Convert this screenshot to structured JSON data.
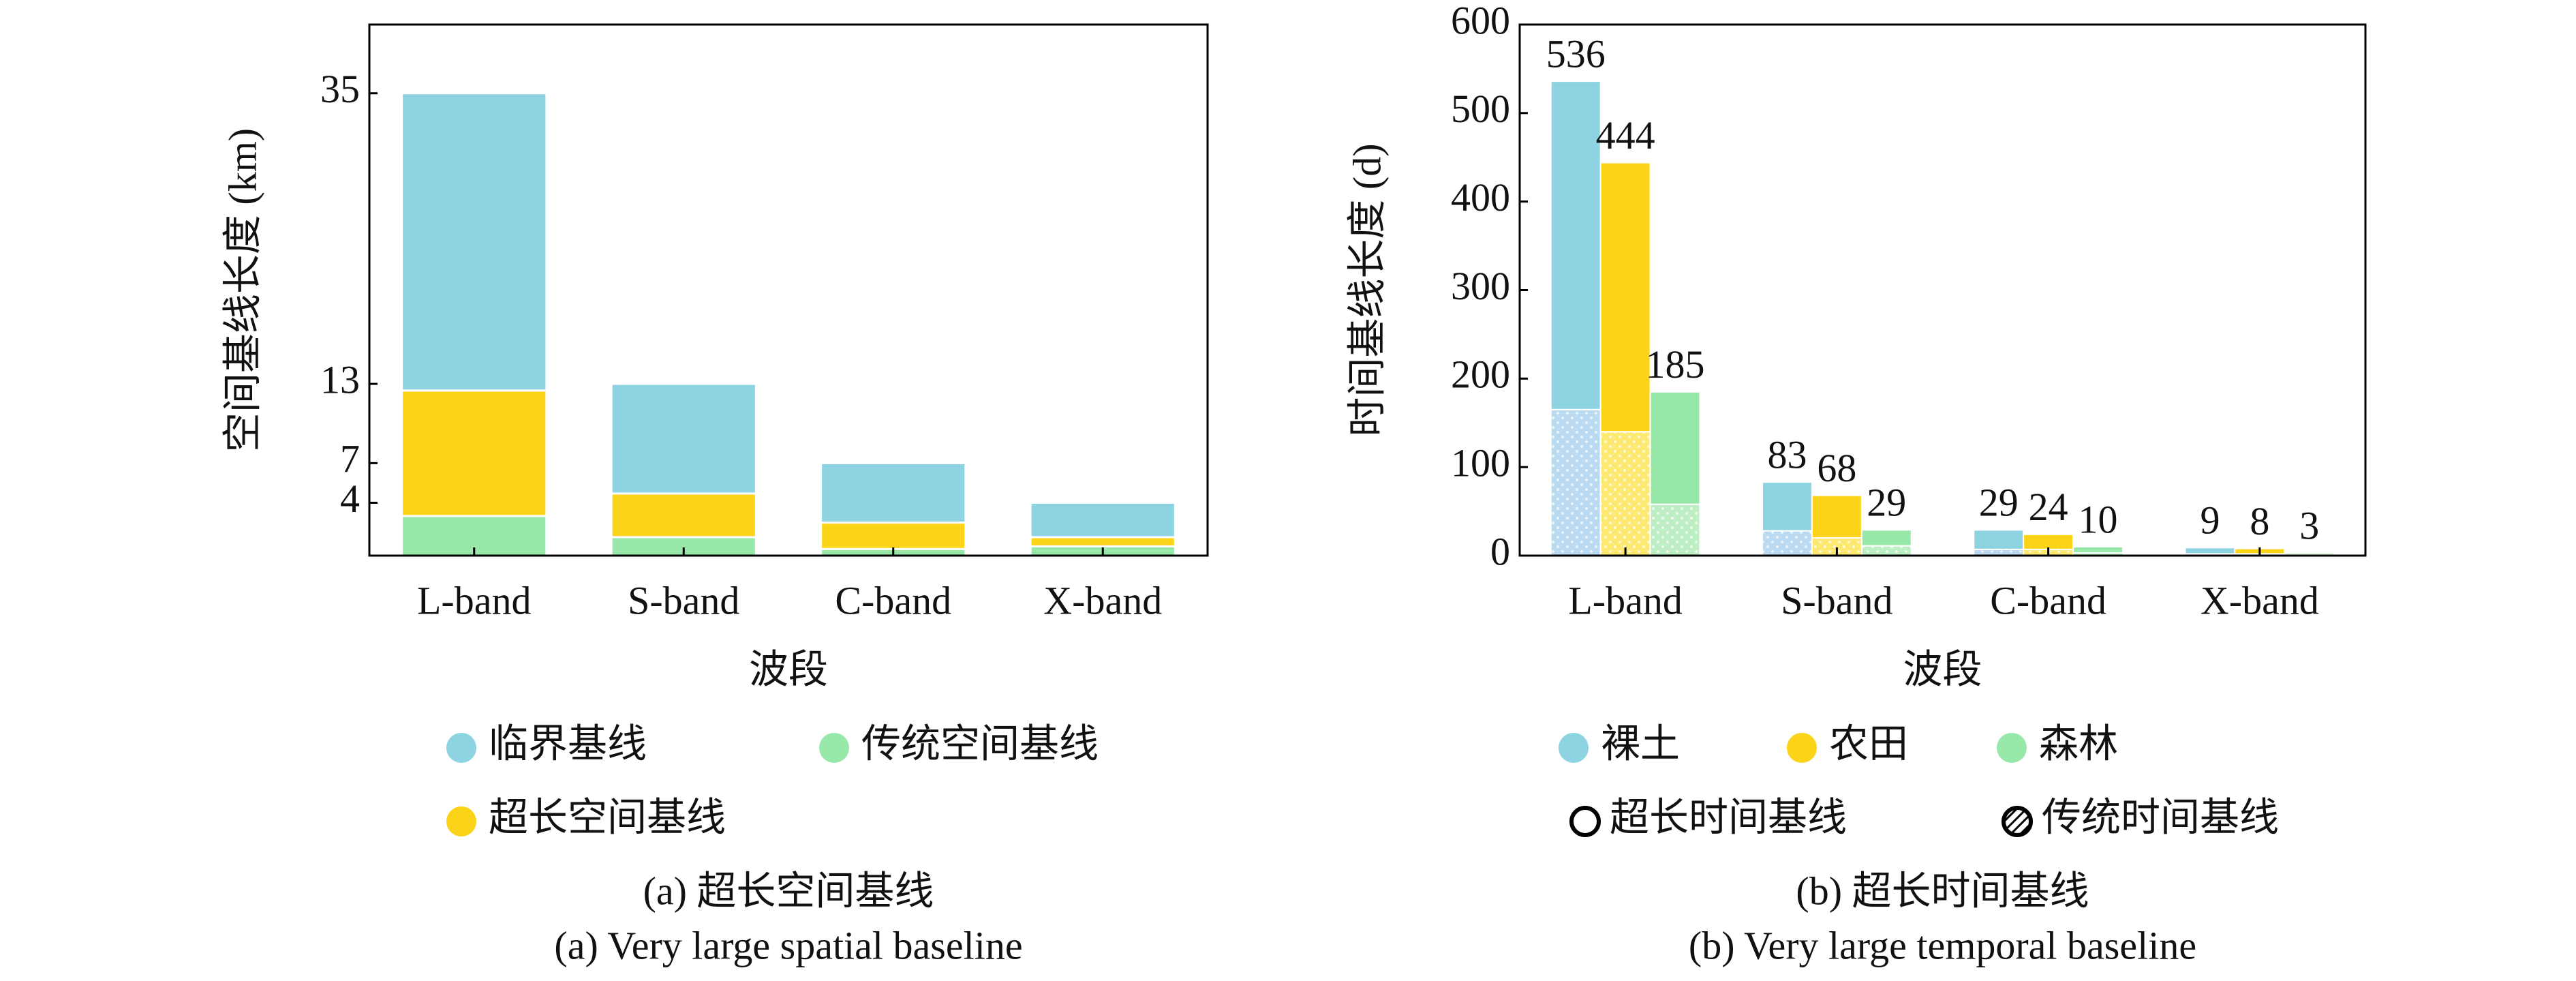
{
  "chart_data": [
    {
      "type": "stacked_bar",
      "ylabel": "空间基线长度 (km)",
      "xlabel": "波段",
      "caption": "(a) 超长空间基线",
      "caption_en": "(a) Very large spatial baseline",
      "categories": [
        "L-band",
        "S-band",
        "C-band",
        "X-band"
      ],
      "ylim": [
        0,
        40.2
      ],
      "yticks": [
        4,
        7,
        13,
        35
      ],
      "grid": false,
      "series": [
        {
          "name": "传统空间基线",
          "color": "#98e8a9",
          "values": [
            3,
            1.4,
            0.5,
            0.7
          ]
        },
        {
          "name": "超长空间基线",
          "color": "#fbd419",
          "values": [
            9.5,
            3.3,
            2.0,
            0.7
          ]
        },
        {
          "name": "临界基线",
          "color": "#8ed3e1",
          "values": [
            22.5,
            8.3,
            4.5,
            2.6
          ]
        }
      ]
    },
    {
      "type": "grouped_stacked_bar",
      "ylabel": "时间基线长度 (d)",
      "xlabel": "波段",
      "caption": "(b) 超长时间基线",
      "caption_en": "(b) Very large temporal baseline",
      "categories": [
        "L-band",
        "S-band",
        "C-band",
        "X-band"
      ],
      "ylim": [
        0,
        600
      ],
      "yticks": [
        0,
        100,
        200,
        300,
        400,
        500,
        600
      ],
      "grid": false,
      "parts": [
        {
          "name": "超长时间基线"
        },
        {
          "name": "传统时间基线"
        }
      ],
      "series": [
        {
          "name": "裸土",
          "color": "#8ed3e1",
          "traditional_color": "#b9daf0",
          "traditional": [
            165,
            28,
            7,
            2
          ],
          "very_large": [
            371,
            55,
            22,
            7
          ],
          "totals": [
            536,
            83,
            29,
            9
          ]
        },
        {
          "name": "农田",
          "color": "#fbd419",
          "traditional_color": "#fde872",
          "traditional": [
            140,
            20,
            7,
            2
          ],
          "very_large": [
            304,
            48,
            17,
            6
          ],
          "totals": [
            444,
            68,
            24,
            8
          ]
        },
        {
          "name": "森林",
          "color": "#98e8a9",
          "traditional_color": "#bdeec4",
          "traditional": [
            58,
            11,
            3,
            1
          ],
          "very_large": [
            127,
            18,
            7,
            2
          ],
          "totals": [
            185,
            29,
            10,
            3
          ]
        }
      ]
    }
  ]
}
